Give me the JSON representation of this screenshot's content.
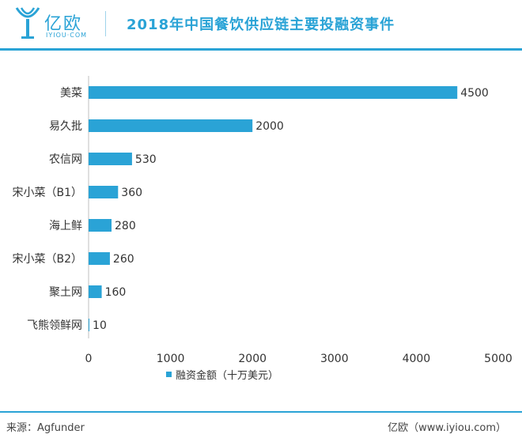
{
  "header": {
    "logo_text": "亿欧",
    "logo_sub": "IYIOU·COM",
    "title": "2018年中国餐饮供应链主要投融资事件"
  },
  "footer": {
    "source": "来源：Agfunder",
    "credit": "亿欧（www.iyiou.com）"
  },
  "colors": {
    "accent": "#2aa3d6",
    "bar": "#2aa3d6"
  },
  "chart_data": {
    "type": "bar",
    "orientation": "horizontal",
    "categories": [
      "美菜",
      "易久批",
      "农信网",
      "宋小菜（B1）",
      "海上鲜",
      "宋小菜（B2）",
      "聚土网",
      "飞熊领鲜网"
    ],
    "series": [
      {
        "name": "融资金额（十万美元）",
        "values": [
          4500,
          2000,
          530,
          360,
          280,
          260,
          160,
          10
        ]
      }
    ],
    "xlim": [
      0,
      5000
    ],
    "xticks": [
      0,
      1000,
      2000,
      3000,
      4000,
      5000
    ],
    "grid": false,
    "legend_position": "bottom"
  }
}
